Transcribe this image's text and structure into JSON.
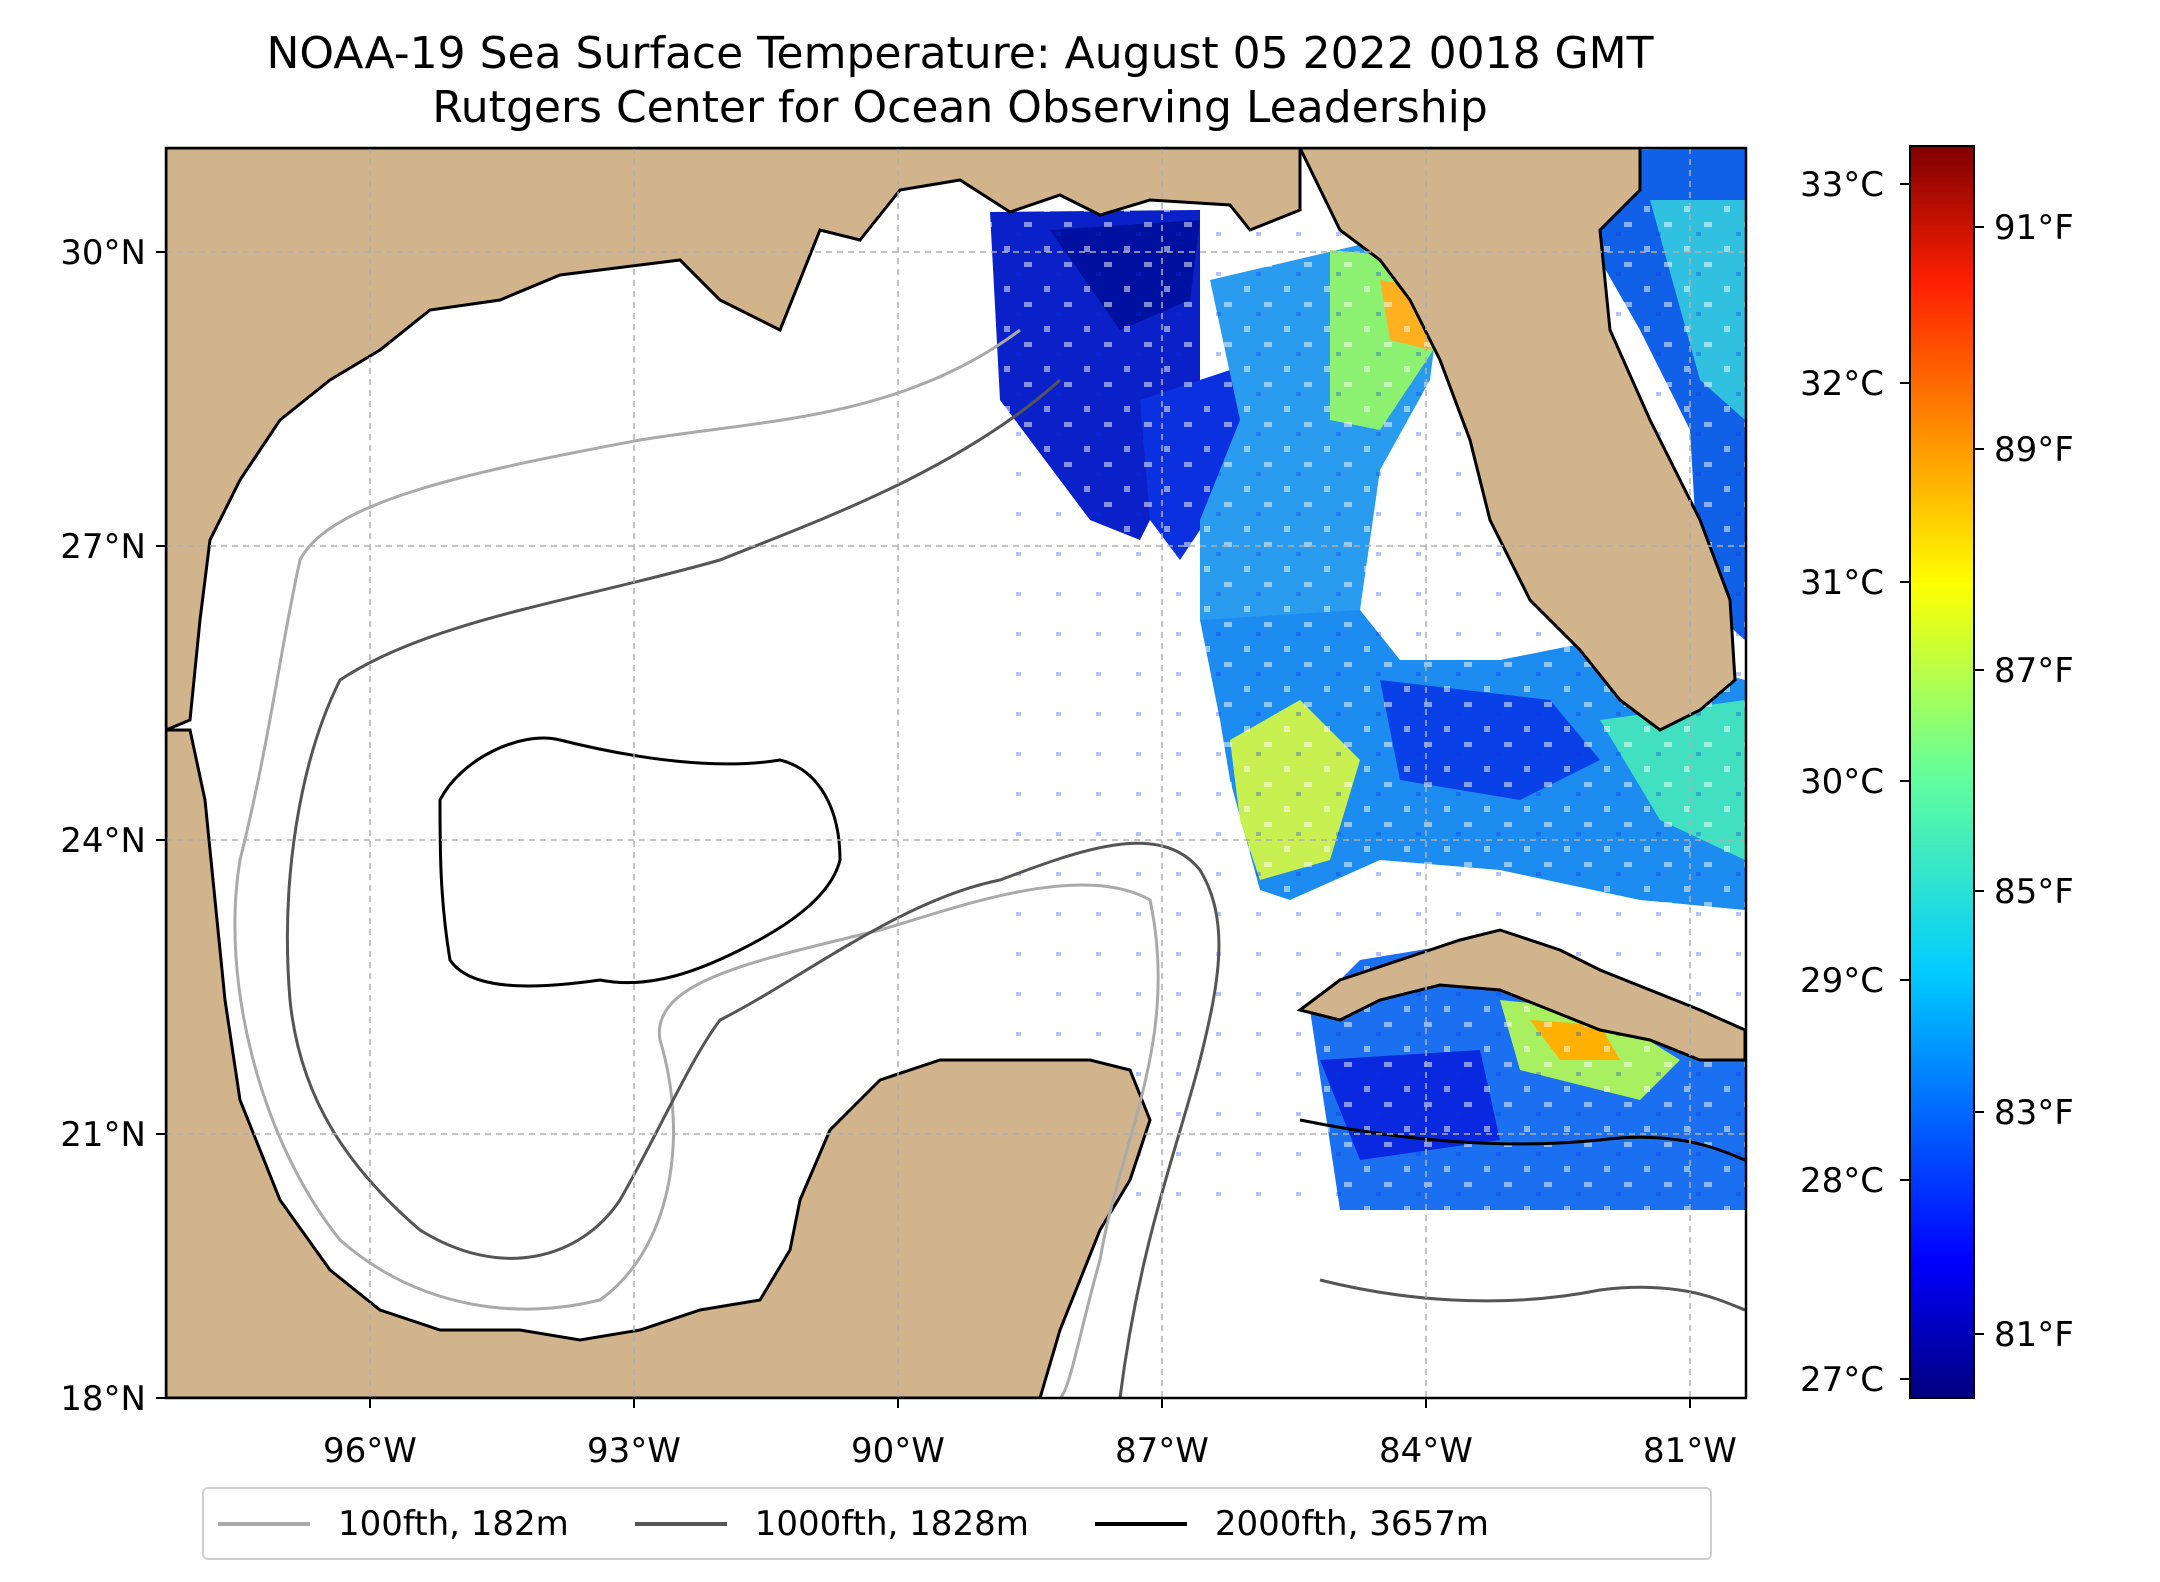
{
  "title_line1": "NOAA-19 Sea Surface Temperature: August 05 2022 0018 GMT",
  "title_line2": "Rutgers Center for Ocean Observing Leadership",
  "map": {
    "lon_ticks": [
      "96°W",
      "93°W",
      "90°W",
      "87°W",
      "84°W",
      "81°W"
    ],
    "lat_ticks": [
      "30°N",
      "27°N",
      "24°N",
      "21°N",
      "18°N"
    ],
    "land_color": "#d2b48c",
    "gridlines": true
  },
  "colorbar": {
    "colormap": "jet",
    "celsius_ticks": [
      "33°C",
      "32°C",
      "31°C",
      "30°C",
      "29°C",
      "28°C",
      "27°C"
    ],
    "fahrenheit_ticks": [
      "91°F",
      "89°F",
      "87°F",
      "85°F",
      "83°F",
      "81°F"
    ]
  },
  "legend": [
    {
      "label": "100fth, 182m",
      "color": "#aaaaaa"
    },
    {
      "label": "1000fth, 1828m",
      "color": "#555555"
    },
    {
      "label": "2000fth, 3657m",
      "color": "#000000"
    }
  ]
}
